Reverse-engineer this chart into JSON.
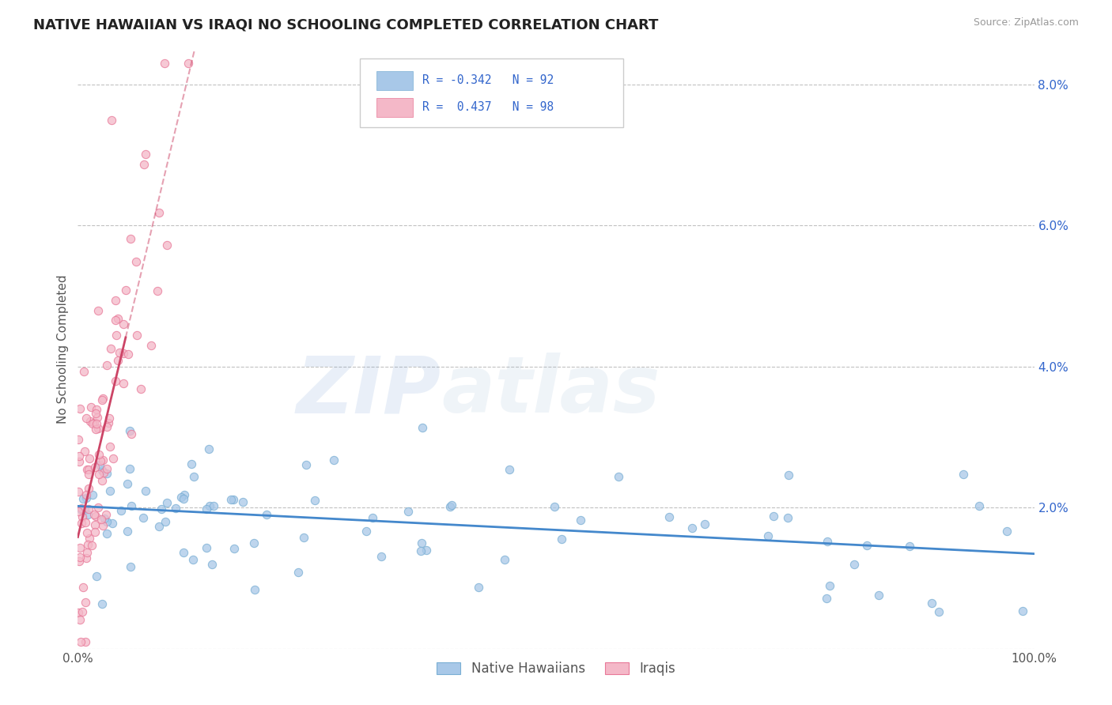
{
  "title": "NATIVE HAWAIIAN VS IRAQI NO SCHOOLING COMPLETED CORRELATION CHART",
  "source": "Source: ZipAtlas.com",
  "ylabel": "No Schooling Completed",
  "xlim": [
    0,
    100
  ],
  "ylim": [
    0,
    8.5
  ],
  "color_blue": "#a8c8e8",
  "color_blue_edge": "#7aafd4",
  "color_pink": "#f4b8c8",
  "color_pink_edge": "#e87898",
  "color_blue_line": "#4488cc",
  "color_pink_line": "#cc4466",
  "color_text_blue": "#3366cc",
  "title_color": "#222222",
  "background_color": "#ffffff",
  "grid_color": "#bbbbbb"
}
